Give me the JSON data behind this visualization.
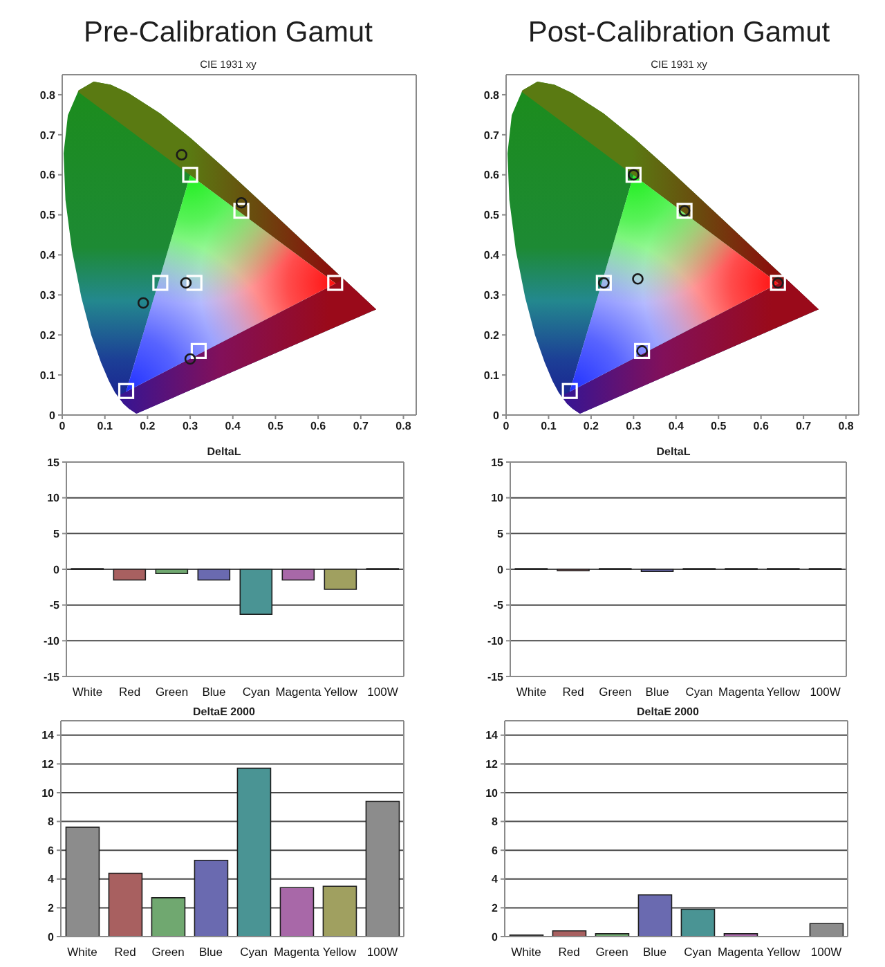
{
  "chart_data": [
    {
      "type": "scatter",
      "title": "Pre-Calibration Gamut",
      "subtitle": "CIE 1931 xy",
      "xlim": [
        0,
        0.83
      ],
      "ylim": [
        0,
        0.85
      ],
      "xticks": [
        0,
        0.1,
        0.2,
        0.3,
        0.4,
        0.5,
        0.6,
        0.7,
        0.8
      ],
      "yticks": [
        0,
        0.1,
        0.2,
        0.3,
        0.4,
        0.5,
        0.6,
        0.7,
        0.8
      ],
      "series": [
        {
          "color": "#ffffff",
          "marker": "square",
          "x": [
            0.31,
            0.64,
            0.3,
            0.15,
            0.23,
            0.32,
            0.42
          ],
          "values": [
            0.33,
            0.33,
            0.6,
            0.06,
            0.33,
            0.16,
            0.51
          ]
        },
        {
          "color": "#1a1a1a",
          "marker": "circle",
          "x": [
            0.29,
            0.28,
            0.19,
            0.3,
            0.42
          ],
          "values": [
            0.33,
            0.65,
            0.28,
            0.14,
            0.53
          ]
        }
      ]
    },
    {
      "type": "scatter",
      "title": "Post-Calibration Gamut",
      "subtitle": "CIE 1931 xy",
      "xlim": [
        0,
        0.83
      ],
      "ylim": [
        0,
        0.85
      ],
      "xticks": [
        0,
        0.1,
        0.2,
        0.3,
        0.4,
        0.5,
        0.6,
        0.7,
        0.8
      ],
      "yticks": [
        0,
        0.1,
        0.2,
        0.3,
        0.4,
        0.5,
        0.6,
        0.7,
        0.8
      ],
      "series": [
        {
          "color": "#ffffff",
          "marker": "square",
          "x": [
            0.64,
            0.3,
            0.15,
            0.23,
            0.32,
            0.42
          ],
          "values": [
            0.33,
            0.6,
            0.06,
            0.33,
            0.16,
            0.51
          ]
        },
        {
          "color": "#1a1a1a",
          "marker": "circle",
          "x": [
            0.31,
            0.64,
            0.3,
            0.23,
            0.32,
            0.42
          ],
          "values": [
            0.34,
            0.33,
            0.6,
            0.33,
            0.16,
            0.51
          ]
        }
      ]
    },
    {
      "type": "bar",
      "title": "DeltaL",
      "categories": [
        "White",
        "Red",
        "Green",
        "Blue",
        "Cyan",
        "Magenta",
        "Yellow",
        "100W"
      ],
      "values": [
        0.1,
        -1.5,
        -0.6,
        -1.5,
        -6.3,
        -1.5,
        -2.8,
        0.1
      ],
      "colors": [
        "#8c8c8c",
        "#a86060",
        "#70a870",
        "#6a6ab0",
        "#4a9494",
        "#a868a8",
        "#a0a060",
        "#8c8c8c"
      ],
      "ylim": [
        -15,
        15
      ],
      "yticks": [
        -15,
        -10,
        -5,
        0,
        5,
        10,
        15
      ],
      "grid": "y"
    },
    {
      "type": "bar",
      "title": "DeltaL",
      "categories": [
        "White",
        "Red",
        "Green",
        "Blue",
        "Cyan",
        "Magenta",
        "Yellow",
        "100W"
      ],
      "values": [
        0.1,
        -0.2,
        0.1,
        -0.3,
        0.1,
        0.1,
        0.1,
        0.1
      ],
      "colors": [
        "#8c8c8c",
        "#a86060",
        "#70a870",
        "#6a6ab0",
        "#4a9494",
        "#a868a8",
        "#a0a060",
        "#8c8c8c"
      ],
      "ylim": [
        -15,
        15
      ],
      "yticks": [
        -15,
        -10,
        -5,
        0,
        5,
        10,
        15
      ],
      "grid": "y"
    },
    {
      "type": "bar",
      "title": "DeltaE 2000",
      "categories": [
        "White",
        "Red",
        "Green",
        "Blue",
        "Cyan",
        "Magenta",
        "Yellow",
        "100W"
      ],
      "values": [
        7.6,
        4.4,
        2.7,
        5.3,
        11.7,
        3.4,
        3.5,
        9.4
      ],
      "colors": [
        "#8c8c8c",
        "#a86060",
        "#70a870",
        "#6a6ab0",
        "#4a9494",
        "#a868a8",
        "#a0a060",
        "#8c8c8c"
      ],
      "ylim": [
        0,
        15
      ],
      "yticks": [
        0,
        2,
        4,
        6,
        8,
        10,
        12,
        14
      ],
      "grid": "y"
    },
    {
      "type": "bar",
      "title": "DeltaE 2000",
      "categories": [
        "White",
        "Red",
        "Green",
        "Blue",
        "Cyan",
        "Magenta",
        "Yellow",
        "100W"
      ],
      "values": [
        0.1,
        0.4,
        0.2,
        2.9,
        1.9,
        0.2,
        0,
        0.9
      ],
      "colors": [
        "#8c8c8c",
        "#a86060",
        "#70a870",
        "#6a6ab0",
        "#4a9494",
        "#a868a8",
        "#a0a060",
        "#8c8c8c"
      ],
      "ylim": [
        0,
        15
      ],
      "yticks": [
        0,
        2,
        4,
        6,
        8,
        10,
        12,
        14
      ],
      "grid": "y"
    }
  ]
}
